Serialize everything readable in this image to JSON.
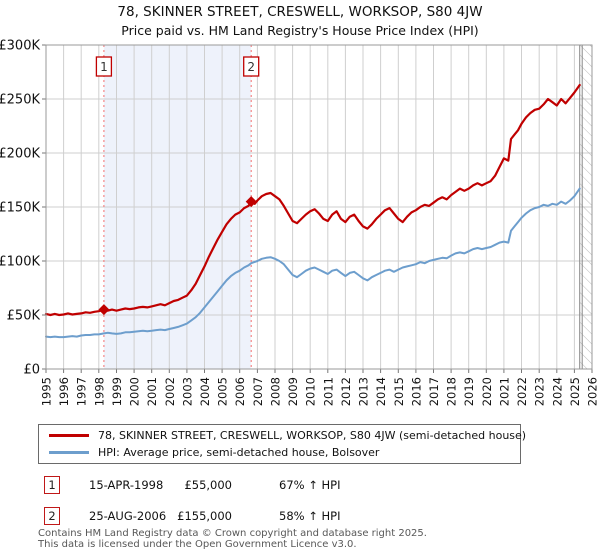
{
  "header": {
    "title": "78, SKINNER STREET, CRESWELL, WORKSOP, S80 4JW",
    "subtitle": "Price paid vs. HM Land Registry's House Price Index (HPI)"
  },
  "colors": {
    "property": "#c00000",
    "hpi": "#6d9ecd",
    "shade": "#eef2fb",
    "sale_line": "#f47c7c",
    "grid": "#cfcfcf",
    "hatch": "#bbbbbb",
    "plot_border": "#999999",
    "tick": "#777777",
    "text": "#111111"
  },
  "chart_data": {
    "type": "line",
    "x_min": 1995,
    "x_max": 2026,
    "y_min": 0,
    "y_max": 300000,
    "grid": true,
    "legend_position": "bottom",
    "x_ticks": [
      1995,
      1996,
      1997,
      1998,
      1999,
      2000,
      2001,
      2002,
      2003,
      2004,
      2005,
      2006,
      2007,
      2008,
      2009,
      2010,
      2011,
      2012,
      2013,
      2014,
      2015,
      2016,
      2017,
      2018,
      2019,
      2020,
      2021,
      2022,
      2023,
      2024,
      2025,
      2026
    ],
    "y_ticks": [
      {
        "value": 0,
        "label": "£0"
      },
      {
        "value": 50000,
        "label": "£50K"
      },
      {
        "value": 100000,
        "label": "£100K"
      },
      {
        "value": 150000,
        "label": "£150K"
      },
      {
        "value": 200000,
        "label": "£200K"
      },
      {
        "value": 250000,
        "label": "£250K"
      },
      {
        "value": 300000,
        "label": "£300K"
      }
    ],
    "shade_span": [
      1998.29,
      2006.65
    ],
    "hatch_span": [
      2025.3,
      2026
    ],
    "sales": [
      {
        "label": "1",
        "x": 1998.29,
        "y": 55000
      },
      {
        "label": "2",
        "x": 2006.65,
        "y": 155000
      }
    ],
    "series": [
      {
        "name": "price-paid",
        "label": "78, SKINNER STREET, CRESWELL, WORKSOP, S80 4JW (semi-detached house)",
        "points": [
          [
            1995,
            51000
          ],
          [
            1995.25,
            50000
          ],
          [
            1995.5,
            51000
          ],
          [
            1995.75,
            50000
          ],
          [
            1996,
            50500
          ],
          [
            1996.25,
            51500
          ],
          [
            1996.5,
            50500
          ],
          [
            1996.75,
            51000
          ],
          [
            1997,
            51500
          ],
          [
            1997.25,
            52500
          ],
          [
            1997.5,
            52000
          ],
          [
            1997.75,
            53000
          ],
          [
            1998,
            53500
          ],
          [
            1998.29,
            55000
          ],
          [
            1998.5,
            54000
          ],
          [
            1998.75,
            55000
          ],
          [
            1999,
            54000
          ],
          [
            1999.25,
            55000
          ],
          [
            1999.5,
            56000
          ],
          [
            1999.75,
            55500
          ],
          [
            2000,
            56000
          ],
          [
            2000.25,
            57000
          ],
          [
            2000.5,
            57500
          ],
          [
            2000.75,
            57000
          ],
          [
            2001,
            58000
          ],
          [
            2001.25,
            59000
          ],
          [
            2001.5,
            60000
          ],
          [
            2001.75,
            59000
          ],
          [
            2002,
            61000
          ],
          [
            2002.25,
            63000
          ],
          [
            2002.5,
            64000
          ],
          [
            2002.75,
            66000
          ],
          [
            2003,
            68000
          ],
          [
            2003.25,
            73000
          ],
          [
            2003.5,
            79000
          ],
          [
            2003.75,
            87000
          ],
          [
            2004,
            95000
          ],
          [
            2004.25,
            104000
          ],
          [
            2004.5,
            112000
          ],
          [
            2004.75,
            120000
          ],
          [
            2005,
            127000
          ],
          [
            2005.25,
            134000
          ],
          [
            2005.5,
            139000
          ],
          [
            2005.75,
            143000
          ],
          [
            2006,
            145000
          ],
          [
            2006.25,
            149000
          ],
          [
            2006.5,
            151000
          ],
          [
            2006.65,
            155000
          ],
          [
            2006.85,
            153000
          ],
          [
            2007,
            156000
          ],
          [
            2007.25,
            160000
          ],
          [
            2007.5,
            162000
          ],
          [
            2007.75,
            163000
          ],
          [
            2008,
            160000
          ],
          [
            2008.25,
            157000
          ],
          [
            2008.5,
            151000
          ],
          [
            2008.75,
            144000
          ],
          [
            2009,
            137000
          ],
          [
            2009.25,
            135000
          ],
          [
            2009.5,
            139000
          ],
          [
            2009.75,
            143000
          ],
          [
            2010,
            146000
          ],
          [
            2010.25,
            148000
          ],
          [
            2010.5,
            144000
          ],
          [
            2010.75,
            139000
          ],
          [
            2011,
            137000
          ],
          [
            2011.25,
            143000
          ],
          [
            2011.5,
            146000
          ],
          [
            2011.75,
            139000
          ],
          [
            2012,
            136000
          ],
          [
            2012.25,
            141000
          ],
          [
            2012.5,
            143000
          ],
          [
            2012.75,
            137000
          ],
          [
            2013,
            132000
          ],
          [
            2013.25,
            130000
          ],
          [
            2013.5,
            134000
          ],
          [
            2013.75,
            139000
          ],
          [
            2014,
            143000
          ],
          [
            2014.25,
            147000
          ],
          [
            2014.5,
            149000
          ],
          [
            2014.75,
            144000
          ],
          [
            2015,
            139000
          ],
          [
            2015.25,
            136000
          ],
          [
            2015.5,
            141000
          ],
          [
            2015.75,
            145000
          ],
          [
            2016,
            147000
          ],
          [
            2016.25,
            150000
          ],
          [
            2016.5,
            152000
          ],
          [
            2016.75,
            151000
          ],
          [
            2017,
            154000
          ],
          [
            2017.25,
            157000
          ],
          [
            2017.5,
            159000
          ],
          [
            2017.75,
            157000
          ],
          [
            2018,
            161000
          ],
          [
            2018.25,
            164000
          ],
          [
            2018.5,
            167000
          ],
          [
            2018.75,
            165000
          ],
          [
            2019,
            167000
          ],
          [
            2019.25,
            170000
          ],
          [
            2019.5,
            172000
          ],
          [
            2019.75,
            170000
          ],
          [
            2020,
            172000
          ],
          [
            2020.25,
            174000
          ],
          [
            2020.5,
            179000
          ],
          [
            2020.75,
            187000
          ],
          [
            2021,
            195000
          ],
          [
            2021.25,
            193000
          ],
          [
            2021.4,
            213000
          ],
          [
            2021.6,
            217000
          ],
          [
            2021.8,
            221000
          ],
          [
            2022,
            227000
          ],
          [
            2022.25,
            233000
          ],
          [
            2022.5,
            237000
          ],
          [
            2022.75,
            240000
          ],
          [
            2023,
            241000
          ],
          [
            2023.25,
            245000
          ],
          [
            2023.5,
            250000
          ],
          [
            2023.75,
            247000
          ],
          [
            2024,
            244000
          ],
          [
            2024.25,
            250000
          ],
          [
            2024.5,
            246000
          ],
          [
            2024.75,
            251000
          ],
          [
            2025,
            256000
          ],
          [
            2025.3,
            263000
          ]
        ]
      },
      {
        "name": "hpi",
        "label": "HPI: Average price, semi-detached house, Bolsover",
        "points": [
          [
            1995,
            30000
          ],
          [
            1995.25,
            29500
          ],
          [
            1995.5,
            30000
          ],
          [
            1995.75,
            29500
          ],
          [
            1996,
            29500
          ],
          [
            1996.25,
            30000
          ],
          [
            1996.5,
            30500
          ],
          [
            1996.75,
            30000
          ],
          [
            1997,
            31000
          ],
          [
            1997.25,
            31500
          ],
          [
            1997.5,
            31500
          ],
          [
            1997.75,
            32000
          ],
          [
            1998,
            32000
          ],
          [
            1998.29,
            33000
          ],
          [
            1998.5,
            33500
          ],
          [
            1998.75,
            33000
          ],
          [
            1999,
            32500
          ],
          [
            1999.25,
            33000
          ],
          [
            1999.5,
            34000
          ],
          [
            1999.75,
            34000
          ],
          [
            2000,
            34500
          ],
          [
            2000.25,
            35000
          ],
          [
            2000.5,
            35500
          ],
          [
            2000.75,
            35000
          ],
          [
            2001,
            35500
          ],
          [
            2001.25,
            36000
          ],
          [
            2001.5,
            36500
          ],
          [
            2001.75,
            36000
          ],
          [
            2002,
            37000
          ],
          [
            2002.25,
            38000
          ],
          [
            2002.5,
            39000
          ],
          [
            2002.75,
            40500
          ],
          [
            2003,
            42000
          ],
          [
            2003.25,
            45000
          ],
          [
            2003.5,
            48000
          ],
          [
            2003.75,
            52000
          ],
          [
            2004,
            57000
          ],
          [
            2004.25,
            62000
          ],
          [
            2004.5,
            67000
          ],
          [
            2004.75,
            72000
          ],
          [
            2005,
            77000
          ],
          [
            2005.25,
            82000
          ],
          [
            2005.5,
            86000
          ],
          [
            2005.75,
            89000
          ],
          [
            2006,
            91000
          ],
          [
            2006.25,
            94000
          ],
          [
            2006.5,
            96000
          ],
          [
            2006.65,
            98000
          ],
          [
            2007,
            100000
          ],
          [
            2007.25,
            102000
          ],
          [
            2007.5,
            103000
          ],
          [
            2007.75,
            103500
          ],
          [
            2008,
            102000
          ],
          [
            2008.25,
            100000
          ],
          [
            2008.5,
            97000
          ],
          [
            2008.75,
            92000
          ],
          [
            2009,
            87000
          ],
          [
            2009.25,
            85000
          ],
          [
            2009.5,
            88000
          ],
          [
            2009.75,
            91000
          ],
          [
            2010,
            93000
          ],
          [
            2010.25,
            94000
          ],
          [
            2010.5,
            92000
          ],
          [
            2010.75,
            90000
          ],
          [
            2011,
            88000
          ],
          [
            2011.25,
            91000
          ],
          [
            2011.5,
            92000
          ],
          [
            2011.75,
            89000
          ],
          [
            2012,
            86000
          ],
          [
            2012.25,
            89000
          ],
          [
            2012.5,
            90000
          ],
          [
            2012.75,
            87000
          ],
          [
            2013,
            84000
          ],
          [
            2013.25,
            82000
          ],
          [
            2013.5,
            85000
          ],
          [
            2013.75,
            87000
          ],
          [
            2014,
            89000
          ],
          [
            2014.25,
            91000
          ],
          [
            2014.5,
            92000
          ],
          [
            2014.75,
            90000
          ],
          [
            2015,
            92000
          ],
          [
            2015.25,
            94000
          ],
          [
            2015.5,
            95000
          ],
          [
            2015.75,
            96000
          ],
          [
            2016,
            97000
          ],
          [
            2016.25,
            99000
          ],
          [
            2016.5,
            98000
          ],
          [
            2016.75,
            100000
          ],
          [
            2017,
            101000
          ],
          [
            2017.25,
            102000
          ],
          [
            2017.5,
            103000
          ],
          [
            2017.75,
            102500
          ],
          [
            2018,
            105000
          ],
          [
            2018.25,
            107000
          ],
          [
            2018.5,
            108000
          ],
          [
            2018.75,
            107000
          ],
          [
            2019,
            109000
          ],
          [
            2019.25,
            111000
          ],
          [
            2019.5,
            112000
          ],
          [
            2019.75,
            111000
          ],
          [
            2020,
            112000
          ],
          [
            2020.25,
            113000
          ],
          [
            2020.5,
            115000
          ],
          [
            2020.75,
            117000
          ],
          [
            2021,
            118000
          ],
          [
            2021.25,
            117000
          ],
          [
            2021.4,
            128000
          ],
          [
            2021.6,
            132000
          ],
          [
            2021.8,
            136000
          ],
          [
            2022,
            140000
          ],
          [
            2022.25,
            144000
          ],
          [
            2022.5,
            147000
          ],
          [
            2022.75,
            149000
          ],
          [
            2023,
            150000
          ],
          [
            2023.25,
            152000
          ],
          [
            2023.5,
            151000
          ],
          [
            2023.75,
            153000
          ],
          [
            2024,
            152000
          ],
          [
            2024.25,
            155000
          ],
          [
            2024.5,
            153000
          ],
          [
            2024.75,
            156000
          ],
          [
            2025,
            160000
          ],
          [
            2025.3,
            167000
          ]
        ]
      }
    ]
  },
  "legend": {
    "items": [
      {
        "label": "78, SKINNER STREET, CRESWELL, WORKSOP, S80 4JW (semi-detached house)",
        "color": "#c00000"
      },
      {
        "label": "HPI: Average price, semi-detached house, Bolsover",
        "color": "#6d9ecd"
      }
    ]
  },
  "transactions": [
    {
      "num": "1",
      "date": "15-APR-1998",
      "price": "£55,000",
      "hpi_change": "67% ↑ HPI"
    },
    {
      "num": "2",
      "date": "25-AUG-2006",
      "price": "£155,000",
      "hpi_change": "58% ↑ HPI"
    }
  ],
  "footer": {
    "line1": "Contains HM Land Registry data © Crown copyright and database right 2025.",
    "line2": "This data is licensed under the Open Government Licence v3.0."
  }
}
